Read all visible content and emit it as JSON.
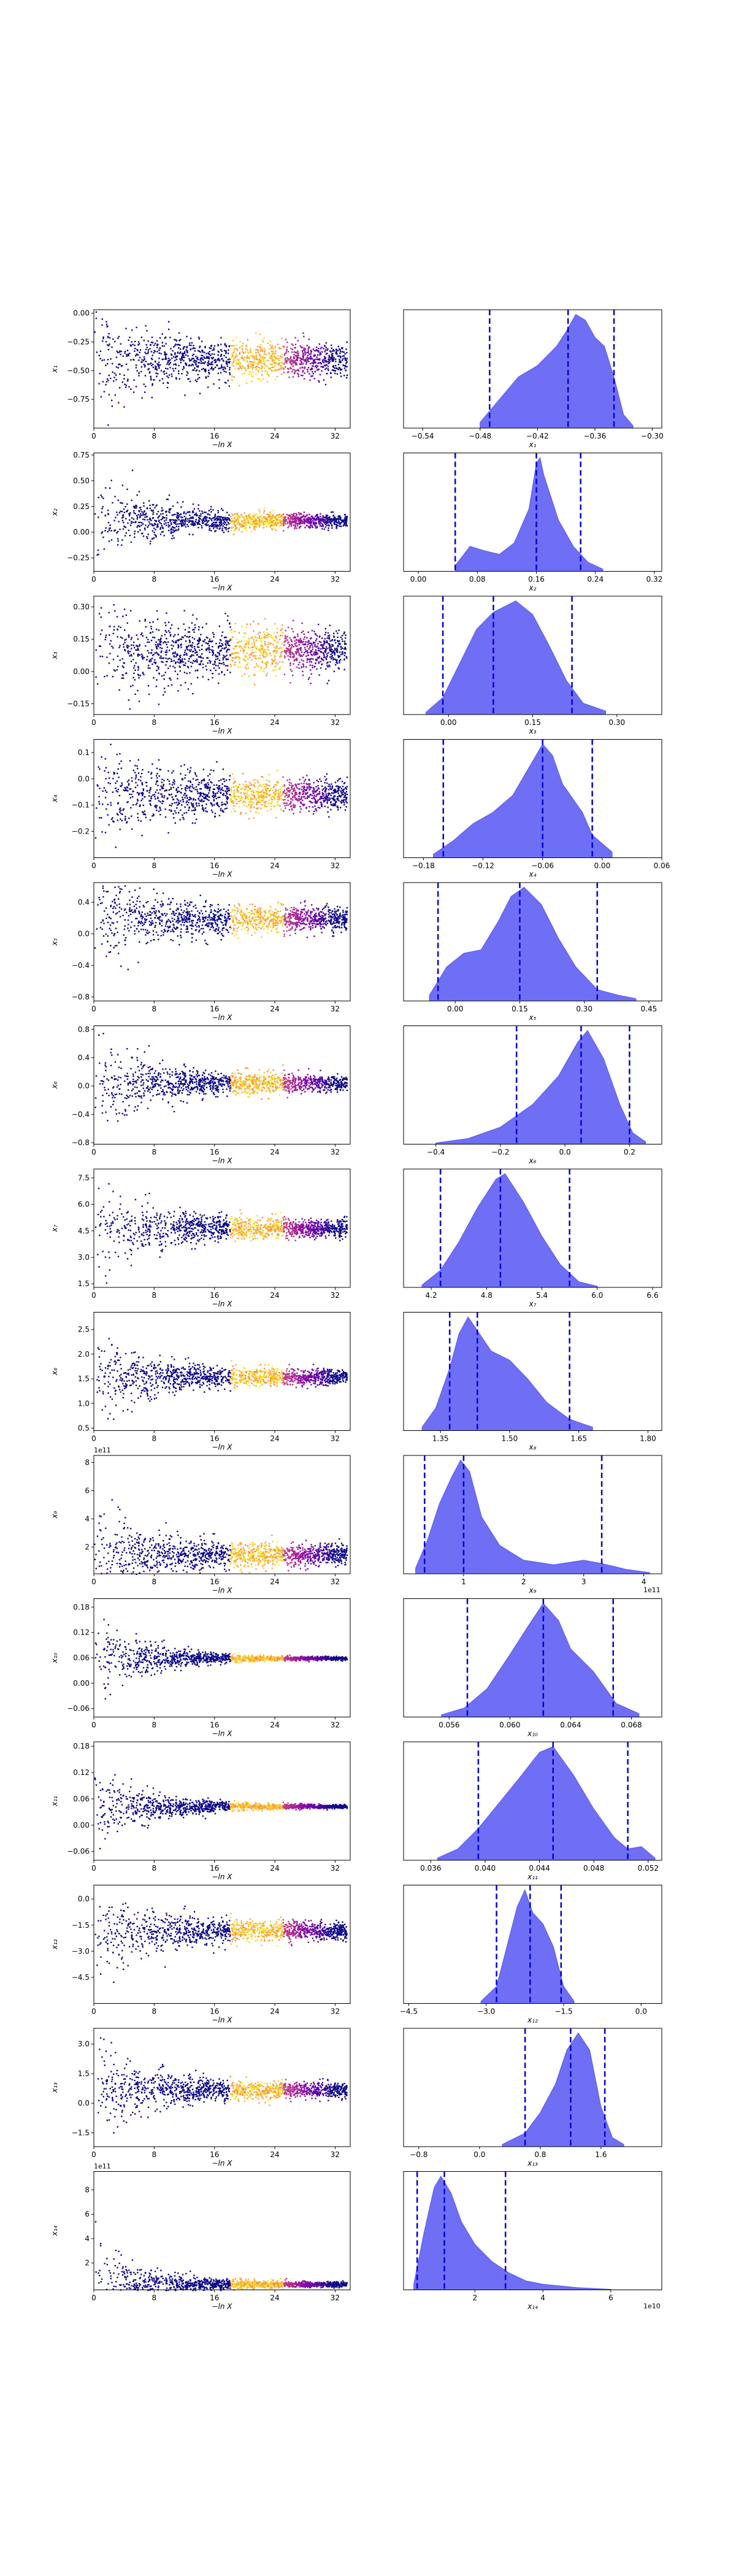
{
  "chart_data": [
    {
      "type": "scatter",
      "xlabel": "−ln X",
      "ylabel": "x₁",
      "xlim": [
        0,
        34
      ],
      "ylim": [
        -1.0,
        0.03
      ],
      "xticks": [
        "0",
        "8",
        "16",
        "24",
        "32"
      ],
      "yticks": [
        "0.00",
        "−0.25",
        "−0.50",
        "−0.75"
      ],
      "offset": "",
      "posterior": {
        "mean": -0.4,
        "spread": 0.12
      }
    },
    {
      "type": "area",
      "xlabel": "x₁",
      "xlim": [
        -0.56,
        -0.29
      ],
      "xticks": [
        "−0.54",
        "−0.48",
        "−0.42",
        "−0.36",
        "−0.30"
      ],
      "quantiles": [
        -0.47,
        -0.388,
        -0.34
      ],
      "density": [
        [
          -0.48,
          0.05
        ],
        [
          -0.46,
          0.25
        ],
        [
          -0.44,
          0.45
        ],
        [
          -0.42,
          0.55
        ],
        [
          -0.4,
          0.72
        ],
        [
          -0.39,
          0.85
        ],
        [
          -0.38,
          1.0
        ],
        [
          -0.37,
          0.95
        ],
        [
          -0.36,
          0.8
        ],
        [
          -0.35,
          0.72
        ],
        [
          -0.34,
          0.45
        ],
        [
          -0.33,
          0.12
        ],
        [
          -0.32,
          0.02
        ]
      ]
    },
    {
      "type": "scatter",
      "xlabel": "−ln X",
      "ylabel": "x₂",
      "xlim": [
        0,
        34
      ],
      "ylim": [
        -0.38,
        0.77
      ],
      "xticks": [
        "0",
        "8",
        "16",
        "24",
        "32"
      ],
      "yticks": [
        "0.75",
        "0.50",
        "0.25",
        "0.00",
        "−0.25"
      ],
      "offset": "",
      "posterior": {
        "mean": 0.12,
        "spread": 0.05
      }
    },
    {
      "type": "area",
      "xlabel": "x₂",
      "xlim": [
        -0.02,
        0.33
      ],
      "xticks": [
        "0.00",
        "0.08",
        "0.16",
        "0.24",
        "0.32"
      ],
      "quantiles": [
        0.05,
        0.16,
        0.22
      ],
      "density": [
        [
          0.05,
          0.05
        ],
        [
          0.07,
          0.22
        ],
        [
          0.09,
          0.18
        ],
        [
          0.11,
          0.15
        ],
        [
          0.13,
          0.25
        ],
        [
          0.15,
          0.55
        ],
        [
          0.16,
          0.95
        ],
        [
          0.165,
          1.0
        ],
        [
          0.17,
          0.85
        ],
        [
          0.19,
          0.45
        ],
        [
          0.21,
          0.22
        ],
        [
          0.23,
          0.08
        ],
        [
          0.25,
          0.02
        ]
      ]
    },
    {
      "type": "scatter",
      "xlabel": "−ln X",
      "ylabel": "x₃",
      "xlim": [
        0,
        34
      ],
      "ylim": [
        -0.2,
        0.35
      ],
      "xticks": [
        "0",
        "8",
        "16",
        "24",
        "32"
      ],
      "yticks": [
        "0.30",
        "0.15",
        "0.00",
        "−0.15"
      ],
      "offset": "",
      "posterior": {
        "mean": 0.1,
        "spread": 0.08
      }
    },
    {
      "type": "area",
      "xlabel": "x₃",
      "xlim": [
        -0.08,
        0.38
      ],
      "xticks": [
        "0.00",
        "0.15",
        "0.30"
      ],
      "quantiles": [
        -0.01,
        0.08,
        0.22
      ],
      "density": [
        [
          -0.04,
          0.02
        ],
        [
          -0.01,
          0.15
        ],
        [
          0.02,
          0.45
        ],
        [
          0.05,
          0.75
        ],
        [
          0.08,
          0.9
        ],
        [
          0.1,
          0.95
        ],
        [
          0.12,
          1.0
        ],
        [
          0.15,
          0.88
        ],
        [
          0.18,
          0.6
        ],
        [
          0.21,
          0.3
        ],
        [
          0.24,
          0.1
        ],
        [
          0.28,
          0.03
        ]
      ]
    },
    {
      "type": "scatter",
      "xlabel": "−ln X",
      "ylabel": "x₄",
      "xlim": [
        0,
        34
      ],
      "ylim": [
        -0.3,
        0.15
      ],
      "xticks": [
        "0",
        "8",
        "16",
        "24",
        "32"
      ],
      "yticks": [
        "0.1",
        "0.0",
        "−0.1",
        "−0.2"
      ],
      "offset": "",
      "posterior": {
        "mean": -0.06,
        "spread": 0.05
      }
    },
    {
      "type": "area",
      "xlabel": "x₄",
      "xlim": [
        -0.2,
        0.06
      ],
      "xticks": [
        "−0.18",
        "−0.12",
        "−0.06",
        "0.00",
        "0.06"
      ],
      "quantiles": [
        -0.16,
        -0.06,
        -0.01
      ],
      "density": [
        [
          -0.17,
          0.03
        ],
        [
          -0.15,
          0.15
        ],
        [
          -0.13,
          0.3
        ],
        [
          -0.11,
          0.4
        ],
        [
          -0.09,
          0.55
        ],
        [
          -0.07,
          0.85
        ],
        [
          -0.06,
          1.0
        ],
        [
          -0.05,
          0.9
        ],
        [
          -0.04,
          0.65
        ],
        [
          -0.02,
          0.4
        ],
        [
          -0.01,
          0.2
        ],
        [
          0.01,
          0.05
        ]
      ]
    },
    {
      "type": "scatter",
      "xlabel": "−ln X",
      "ylabel": "x₅",
      "xlim": [
        0,
        34
      ],
      "ylim": [
        -0.85,
        0.65
      ],
      "xticks": [
        "0",
        "8",
        "16",
        "24",
        "32"
      ],
      "yticks": [
        "0.4",
        "0.0",
        "−0.4",
        "−0.8"
      ],
      "offset": "",
      "posterior": {
        "mean": 0.2,
        "spread": 0.12
      }
    },
    {
      "type": "area",
      "xlabel": "x₅",
      "xlim": [
        -0.12,
        0.48
      ],
      "xticks": [
        "0.00",
        "0.15",
        "0.30",
        "0.45"
      ],
      "quantiles": [
        -0.04,
        0.15,
        0.33
      ],
      "density": [
        [
          -0.06,
          0.05
        ],
        [
          -0.02,
          0.3
        ],
        [
          0.02,
          0.42
        ],
        [
          0.06,
          0.45
        ],
        [
          0.1,
          0.7
        ],
        [
          0.13,
          0.92
        ],
        [
          0.16,
          1.0
        ],
        [
          0.2,
          0.85
        ],
        [
          0.24,
          0.55
        ],
        [
          0.28,
          0.3
        ],
        [
          0.33,
          0.1
        ],
        [
          0.38,
          0.05
        ],
        [
          0.42,
          0.02
        ]
      ]
    },
    {
      "type": "scatter",
      "xlabel": "−ln X",
      "ylabel": "x₆",
      "xlim": [
        0,
        34
      ],
      "ylim": [
        -0.82,
        0.85
      ],
      "xticks": [
        "0",
        "8",
        "16",
        "24",
        "32"
      ],
      "yticks": [
        "0.8",
        "0.4",
        "0.0",
        "−0.4",
        "−0.8"
      ],
      "offset": "",
      "posterior": {
        "mean": 0.05,
        "spread": 0.1
      }
    },
    {
      "type": "area",
      "xlabel": "x₆",
      "xlim": [
        -0.5,
        0.3
      ],
      "xticks": [
        "−0.4",
        "−0.2",
        "0.0",
        "0.2"
      ],
      "quantiles": [
        -0.15,
        0.05,
        0.2
      ],
      "density": [
        [
          -0.4,
          0.01
        ],
        [
          -0.3,
          0.05
        ],
        [
          -0.2,
          0.15
        ],
        [
          -0.1,
          0.35
        ],
        [
          -0.02,
          0.6
        ],
        [
          0.04,
          0.9
        ],
        [
          0.07,
          1.0
        ],
        [
          0.12,
          0.75
        ],
        [
          0.17,
          0.35
        ],
        [
          0.21,
          0.1
        ],
        [
          0.25,
          0.02
        ]
      ]
    },
    {
      "type": "scatter",
      "xlabel": "−ln X",
      "ylabel": "x₇",
      "xlim": [
        0,
        34
      ],
      "ylim": [
        1.3,
        8.0
      ],
      "xticks": [
        "0",
        "8",
        "16",
        "24",
        "32"
      ],
      "yticks": [
        "7.5",
        "6.0",
        "4.5",
        "3.0",
        "1.5"
      ],
      "offset": "",
      "posterior": {
        "mean": 4.7,
        "spread": 0.4
      }
    },
    {
      "type": "area",
      "xlabel": "x₇",
      "xlim": [
        3.9,
        6.7
      ],
      "xticks": [
        "4.2",
        "4.8",
        "5.4",
        "6.0",
        "6.6"
      ],
      "quantiles": [
        4.3,
        4.95,
        5.7
      ],
      "density": [
        [
          4.1,
          0.02
        ],
        [
          4.3,
          0.15
        ],
        [
          4.5,
          0.4
        ],
        [
          4.7,
          0.7
        ],
        [
          4.9,
          0.95
        ],
        [
          5.0,
          1.0
        ],
        [
          5.2,
          0.75
        ],
        [
          5.4,
          0.45
        ],
        [
          5.6,
          0.2
        ],
        [
          5.8,
          0.05
        ],
        [
          6.0,
          0.01
        ]
      ]
    },
    {
      "type": "scatter",
      "xlabel": "−ln X",
      "ylabel": "x₈",
      "xlim": [
        0,
        34
      ],
      "ylim": [
        0.45,
        2.85
      ],
      "xticks": [
        "0",
        "8",
        "16",
        "24",
        "32"
      ],
      "yticks": [
        "2.5",
        "2.0",
        "1.5",
        "1.0",
        "0.5"
      ],
      "offset": "",
      "posterior": {
        "mean": 1.55,
        "spread": 0.12
      }
    },
    {
      "type": "area",
      "xlabel": "x₈",
      "xlim": [
        1.27,
        1.83
      ],
      "xticks": [
        "1.35",
        "1.50",
        "1.65",
        "1.80"
      ],
      "quantiles": [
        1.37,
        1.43,
        1.63
      ],
      "density": [
        [
          1.31,
          0.03
        ],
        [
          1.34,
          0.2
        ],
        [
          1.37,
          0.55
        ],
        [
          1.39,
          0.85
        ],
        [
          1.41,
          1.0
        ],
        [
          1.43,
          0.88
        ],
        [
          1.46,
          0.7
        ],
        [
          1.5,
          0.62
        ],
        [
          1.54,
          0.45
        ],
        [
          1.58,
          0.25
        ],
        [
          1.63,
          0.1
        ],
        [
          1.68,
          0.03
        ]
      ]
    },
    {
      "type": "scatter",
      "xlabel": "−ln X",
      "ylabel": "x₉",
      "xlim": [
        0,
        34
      ],
      "ylim": [
        0.1,
        8.5
      ],
      "xticks": [
        "0",
        "8",
        "16",
        "24",
        "32"
      ],
      "yticks": [
        "8",
        "6",
        "4",
        "2"
      ],
      "offset": "1e11",
      "posterior": {
        "mean": 1.5,
        "spread": 0.6
      }
    },
    {
      "type": "area",
      "xlabel": "x₉",
      "xlim": [
        0.0,
        4.3
      ],
      "xticks": [
        "1",
        "2",
        "3",
        "4"
      ],
      "quantiles": [
        0.35,
        1.0,
        3.3
      ],
      "density": [
        [
          0.2,
          0.05
        ],
        [
          0.4,
          0.3
        ],
        [
          0.6,
          0.62
        ],
        [
          0.8,
          0.85
        ],
        [
          0.95,
          1.0
        ],
        [
          1.1,
          0.9
        ],
        [
          1.3,
          0.5
        ],
        [
          1.6,
          0.25
        ],
        [
          2.0,
          0.12
        ],
        [
          2.5,
          0.08
        ],
        [
          3.0,
          0.12
        ],
        [
          3.3,
          0.09
        ],
        [
          3.7,
          0.04
        ],
        [
          4.1,
          0.01
        ]
      ]
    },
    {
      "type": "scatter",
      "xlabel": "−ln X",
      "ylabel": "x₁₀",
      "xlim": [
        0,
        34
      ],
      "ylim": [
        -0.08,
        0.2
      ],
      "xticks": [
        "0",
        "8",
        "16",
        "24",
        "32"
      ],
      "yticks": [
        "0.18",
        "0.12",
        "0.06",
        "0.00",
        "−0.06"
      ],
      "offset": "",
      "posterior": {
        "mean": 0.06,
        "spread": 0.0025
      }
    },
    {
      "type": "area",
      "xlabel": "x₁₀",
      "xlim": [
        0.053,
        0.07
      ],
      "xticks": [
        "0.056",
        "0.060",
        "0.064",
        "0.068"
      ],
      "quantiles": [
        0.0572,
        0.0622,
        0.0668
      ],
      "density": [
        [
          0.0555,
          0.02
        ],
        [
          0.057,
          0.08
        ],
        [
          0.0585,
          0.25
        ],
        [
          0.06,
          0.55
        ],
        [
          0.0612,
          0.8
        ],
        [
          0.0622,
          1.0
        ],
        [
          0.0632,
          0.85
        ],
        [
          0.064,
          0.6
        ],
        [
          0.0655,
          0.4
        ],
        [
          0.067,
          0.12
        ],
        [
          0.0685,
          0.03
        ]
      ]
    },
    {
      "type": "scatter",
      "xlabel": "−ln X",
      "ylabel": "x₁₁",
      "xlim": [
        0,
        34
      ],
      "ylim": [
        -0.08,
        0.19
      ],
      "xticks": [
        "0",
        "8",
        "16",
        "24",
        "32"
      ],
      "yticks": [
        "0.18",
        "0.12",
        "0.06",
        "0.00",
        "−0.06"
      ],
      "offset": "",
      "posterior": {
        "mean": 0.044,
        "spread": 0.003
      }
    },
    {
      "type": "area",
      "xlabel": "x₁₁",
      "xlim": [
        0.034,
        0.053
      ],
      "xticks": [
        "0.036",
        "0.040",
        "0.044",
        "0.048",
        "0.052"
      ],
      "quantiles": [
        0.0395,
        0.045,
        0.0505
      ],
      "density": [
        [
          0.0365,
          0.02
        ],
        [
          0.038,
          0.1
        ],
        [
          0.0395,
          0.28
        ],
        [
          0.041,
          0.5
        ],
        [
          0.0425,
          0.72
        ],
        [
          0.044,
          0.95
        ],
        [
          0.045,
          1.0
        ],
        [
          0.0465,
          0.75
        ],
        [
          0.048,
          0.45
        ],
        [
          0.0495,
          0.2
        ],
        [
          0.0505,
          0.1
        ],
        [
          0.0515,
          0.12
        ],
        [
          0.0525,
          0.02
        ]
      ]
    },
    {
      "type": "scatter",
      "xlabel": "−ln X",
      "ylabel": "x₁₂",
      "xlim": [
        0,
        34
      ],
      "ylim": [
        -6.0,
        0.8
      ],
      "xticks": [
        "0",
        "8",
        "16",
        "24",
        "32"
      ],
      "yticks": [
        "0.0",
        "−1.5",
        "−3.0",
        "−4.5"
      ],
      "offset": "",
      "posterior": {
        "mean": -1.8,
        "spread": 0.4
      }
    },
    {
      "type": "area",
      "xlabel": "x₁₂",
      "xlim": [
        -4.6,
        0.4
      ],
      "xticks": [
        "−4.5",
        "−3.0",
        "−1.5",
        "0.0"
      ],
      "quantiles": [
        -2.8,
        -2.15,
        -1.55
      ],
      "density": [
        [
          -3.1,
          0.02
        ],
        [
          -2.8,
          0.15
        ],
        [
          -2.6,
          0.5
        ],
        [
          -2.4,
          0.85
        ],
        [
          -2.25,
          1.0
        ],
        [
          -2.1,
          0.8
        ],
        [
          -1.9,
          0.7
        ],
        [
          -1.7,
          0.5
        ],
        [
          -1.5,
          0.15
        ],
        [
          -1.3,
          0.02
        ]
      ]
    },
    {
      "type": "scatter",
      "xlabel": "−ln X",
      "ylabel": "x₁₃",
      "xlim": [
        0,
        34
      ],
      "ylim": [
        -2.2,
        3.8
      ],
      "xticks": [
        "0",
        "8",
        "16",
        "24",
        "32"
      ],
      "yticks": [
        "3.0",
        "1.5",
        "0.0",
        "−1.5"
      ],
      "offset": "",
      "posterior": {
        "mean": 0.7,
        "spread": 0.3
      }
    },
    {
      "type": "area",
      "xlabel": "x₁₃",
      "xlim": [
        -1.0,
        2.4
      ],
      "xticks": [
        "−0.8",
        "0.0",
        "0.8",
        "1.6"
      ],
      "quantiles": [
        0.6,
        1.2,
        1.65
      ],
      "density": [
        [
          0.3,
          0.02
        ],
        [
          0.6,
          0.12
        ],
        [
          0.8,
          0.3
        ],
        [
          1.0,
          0.55
        ],
        [
          1.15,
          0.85
        ],
        [
          1.3,
          1.0
        ],
        [
          1.45,
          0.85
        ],
        [
          1.6,
          0.35
        ],
        [
          1.75,
          0.08
        ],
        [
          1.9,
          0.02
        ]
      ]
    },
    {
      "type": "scatter",
      "xlabel": "−ln X",
      "ylabel": "x₁₄",
      "xlim": [
        0,
        34
      ],
      "ylim": [
        -0.2,
        9.5
      ],
      "xticks": [
        "0",
        "8",
        "16",
        "24",
        "32"
      ],
      "yticks": [
        "8",
        "6",
        "4",
        "2"
      ],
      "offset": "1e11",
      "posterior": {
        "mean": 0.3,
        "spread": 0.15
      }
    },
    {
      "type": "area",
      "xlabel": "x₁₄",
      "xlim": [
        -0.1,
        7.5
      ],
      "xticks": [
        "2",
        "4",
        "6"
      ],
      "quantiles": [
        0.3,
        1.1,
        2.9
      ],
      "density": [
        [
          0.2,
          0.05
        ],
        [
          0.5,
          0.5
        ],
        [
          0.8,
          0.9
        ],
        [
          1.0,
          1.0
        ],
        [
          1.3,
          0.85
        ],
        [
          1.6,
          0.6
        ],
        [
          2.0,
          0.4
        ],
        [
          2.5,
          0.25
        ],
        [
          3.0,
          0.15
        ],
        [
          3.5,
          0.08
        ],
        [
          4.0,
          0.05
        ],
        [
          5.0,
          0.02
        ],
        [
          6.0,
          0.005
        ]
      ]
    }
  ],
  "colors": {
    "fill": "#6f6ff5",
    "dash": "#0000dd",
    "axes": "#000000"
  }
}
